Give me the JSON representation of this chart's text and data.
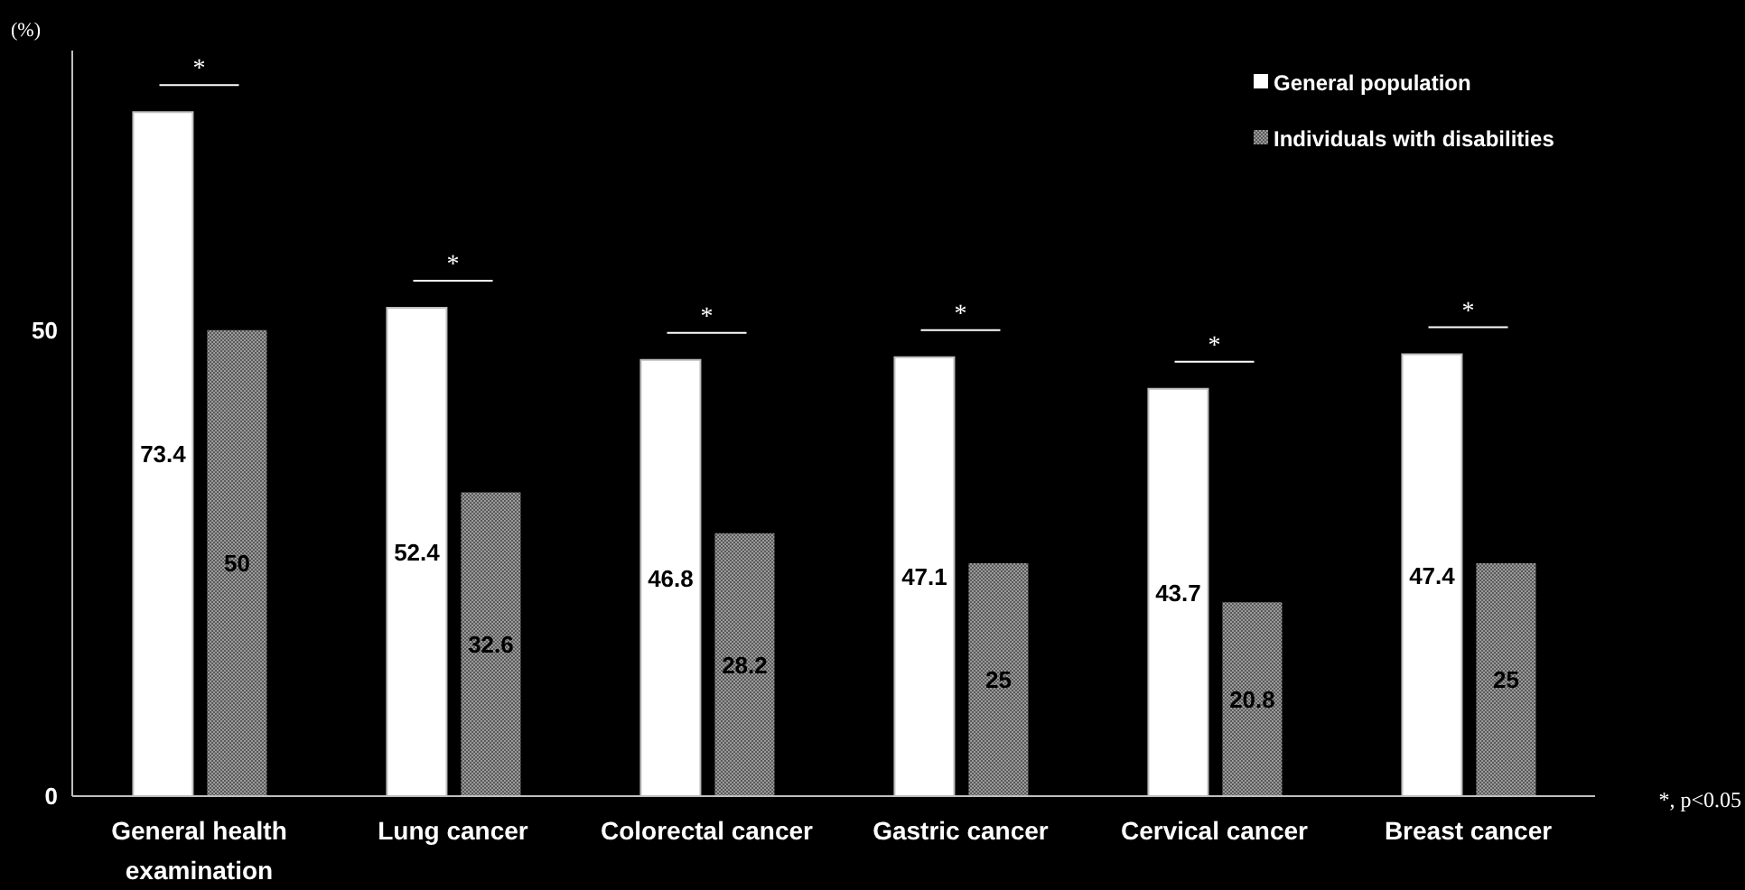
{
  "chart_data": {
    "type": "bar",
    "ylabel": "(%)",
    "categories": [
      "General health examination",
      "Lung cancer",
      "Colorectal cancer",
      "Gastric cancer",
      "Cervical cancer",
      "Breast cancer"
    ],
    "series": [
      {
        "name": "General population",
        "color": "#ffffff",
        "values": [
          73.4,
          52.4,
          46.8,
          47.1,
          43.7,
          47.4
        ]
      },
      {
        "name": "Individuals with disabilities",
        "color": "#9a9a9a",
        "values": [
          50,
          32.6,
          28.2,
          25,
          20.8,
          25
        ]
      }
    ],
    "ylim": [
      0,
      80
    ],
    "yticks": [
      0,
      50
    ],
    "data_labels": true,
    "legend": "top right",
    "grid": false,
    "annotations": [
      "*",
      "*",
      "*",
      "*",
      "*",
      "*",
      "*, p<0.05"
    ]
  }
}
